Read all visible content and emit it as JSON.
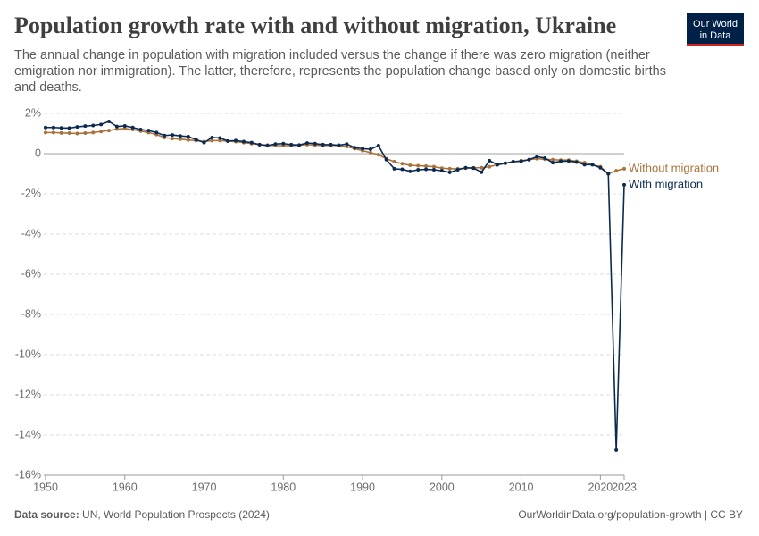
{
  "chart_data": {
    "type": "line",
    "title": "Population growth rate with and without migration, Ukraine",
    "subtitle": "The annual change in population with migration included versus the change if there was zero migration (neither emigration nor immigration). The latter, therefore, represents the population change based only on domestic births and deaths.",
    "source_label": "Data source:",
    "source": "UN, World Population Prospects (2024)",
    "footer_right": "OurWorldinData.org/population-growth | CC BY",
    "logo": [
      "Our World",
      "in Data"
    ],
    "x": [
      1950,
      1951,
      1952,
      1953,
      1954,
      1955,
      1956,
      1957,
      1958,
      1959,
      1960,
      1961,
      1962,
      1963,
      1964,
      1965,
      1966,
      1967,
      1968,
      1969,
      1970,
      1971,
      1972,
      1973,
      1974,
      1975,
      1976,
      1977,
      1978,
      1979,
      1980,
      1981,
      1982,
      1983,
      1984,
      1985,
      1986,
      1987,
      1988,
      1989,
      1990,
      1991,
      1992,
      1993,
      1994,
      1995,
      1996,
      1997,
      1998,
      1999,
      2000,
      2001,
      2002,
      2003,
      2004,
      2005,
      2006,
      2007,
      2008,
      2009,
      2010,
      2011,
      2012,
      2013,
      2014,
      2015,
      2016,
      2017,
      2018,
      2019,
      2020,
      2021,
      2022,
      2023
    ],
    "series": [
      {
        "name": "Without migration",
        "color": "#a8723a",
        "values": [
          1.05,
          1.05,
          1.03,
          1.02,
          1.0,
          1.02,
          1.05,
          1.1,
          1.15,
          1.22,
          1.25,
          1.2,
          1.12,
          1.05,
          0.95,
          0.8,
          0.75,
          0.72,
          0.68,
          0.65,
          0.6,
          0.65,
          0.65,
          0.62,
          0.6,
          0.55,
          0.5,
          0.45,
          0.43,
          0.4,
          0.4,
          0.4,
          0.42,
          0.45,
          0.43,
          0.4,
          0.42,
          0.4,
          0.35,
          0.25,
          0.15,
          0.05,
          -0.05,
          -0.25,
          -0.4,
          -0.5,
          -0.58,
          -0.6,
          -0.62,
          -0.65,
          -0.72,
          -0.75,
          -0.75,
          -0.72,
          -0.7,
          -0.7,
          -0.65,
          -0.55,
          -0.48,
          -0.4,
          -0.35,
          -0.3,
          -0.25,
          -0.28,
          -0.3,
          -0.32,
          -0.32,
          -0.38,
          -0.45,
          -0.55,
          -0.65,
          -1.0,
          -0.85,
          -0.75
        ]
      },
      {
        "name": "With migration",
        "color": "#0b2a51",
        "values": [
          1.3,
          1.3,
          1.28,
          1.27,
          1.33,
          1.37,
          1.4,
          1.45,
          1.6,
          1.35,
          1.38,
          1.3,
          1.2,
          1.15,
          1.05,
          0.9,
          0.93,
          0.88,
          0.85,
          0.7,
          0.55,
          0.8,
          0.78,
          0.63,
          0.65,
          0.6,
          0.55,
          0.45,
          0.4,
          0.48,
          0.5,
          0.45,
          0.43,
          0.53,
          0.5,
          0.45,
          0.45,
          0.42,
          0.48,
          0.3,
          0.25,
          0.22,
          0.4,
          -0.3,
          -0.75,
          -0.78,
          -0.88,
          -0.8,
          -0.78,
          -0.8,
          -0.85,
          -0.93,
          -0.8,
          -0.7,
          -0.72,
          -0.92,
          -0.35,
          -0.55,
          -0.48,
          -0.4,
          -0.38,
          -0.3,
          -0.15,
          -0.22,
          -0.45,
          -0.38,
          -0.37,
          -0.42,
          -0.55,
          -0.55,
          -0.7,
          -1.0,
          -14.75,
          -1.55
        ]
      }
    ],
    "xlim": [
      1950,
      2023
    ],
    "xticks": [
      1950,
      1960,
      1970,
      1980,
      1990,
      2000,
      2010,
      2020,
      2023
    ],
    "ylim": [
      -16,
      2
    ],
    "yticks": [
      {
        "value": 2,
        "label": "2%"
      },
      0,
      {
        "value": -2,
        "label": "-2%"
      },
      {
        "value": -4,
        "label": "-4%"
      },
      {
        "value": -6,
        "label": "-6%"
      },
      {
        "value": -8,
        "label": "-8%"
      },
      {
        "value": -10,
        "label": "-10%"
      },
      {
        "value": -12,
        "label": "-12%"
      },
      {
        "value": -14,
        "label": "-14%"
      },
      {
        "value": -16,
        "label": "-16%"
      }
    ],
    "grid": true
  }
}
